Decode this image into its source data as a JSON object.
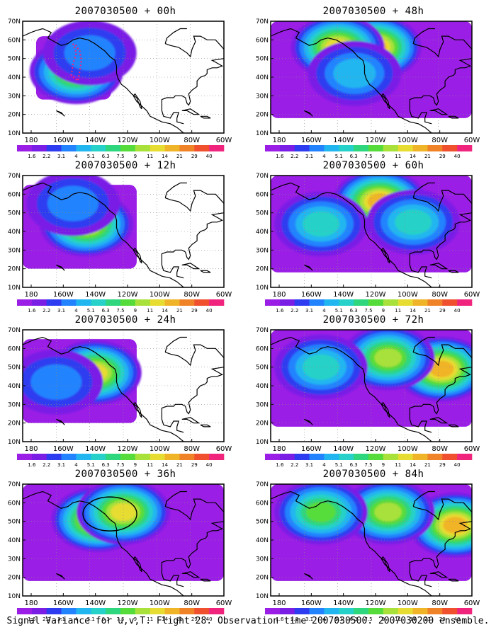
{
  "caption": "Signal Variance for u,v,T. Flight 28. Observation time 2007030500. 2007030200 ensemble.",
  "colorbar": {
    "labels": [
      "1.6",
      "2.2",
      "3.1",
      "4",
      "5.1",
      "6.3",
      "7.5",
      "9",
      "11",
      "14",
      "21",
      "29",
      "40"
    ],
    "colors": [
      "#9b1ee6",
      "#7a1ee6",
      "#2d3cf0",
      "#2383ff",
      "#21b6f0",
      "#25d1c8",
      "#2ed67e",
      "#56dc3a",
      "#a8e13a",
      "#e6dc32",
      "#f0b428",
      "#f08228",
      "#f0502d",
      "#f0237d"
    ]
  },
  "axes": {
    "xticks": [
      "180",
      "160W",
      "140W",
      "120W",
      "100W",
      "80W",
      "60W"
    ],
    "yticks": [
      "10N",
      "20N",
      "30N",
      "40N",
      "50N",
      "60N",
      "70N"
    ]
  },
  "chart_data": [
    {
      "type": "heatmap",
      "title": "2007030500 + 00h",
      "field": "signal variance",
      "xlim": [
        "180",
        "60W"
      ],
      "ylim": [
        "10N",
        "70N"
      ],
      "blobs": [
        {
          "lon": -148,
          "lat": 43,
          "peak": 11
        },
        {
          "lon": -140,
          "lat": 53,
          "peak": 4
        }
      ],
      "extent": "small",
      "path": true
    },
    {
      "type": "heatmap",
      "title": "2007030500 + 12h",
      "field": "signal variance",
      "xlim": [
        "180",
        "60W"
      ],
      "ylim": [
        "10N",
        "70N"
      ],
      "blobs": [
        {
          "lon": -142,
          "lat": 44,
          "peak": 14
        },
        {
          "lon": -150,
          "lat": 55,
          "peak": 5
        }
      ],
      "extent": "medium"
    },
    {
      "type": "heatmap",
      "title": "2007030500 + 24h",
      "field": "signal variance",
      "xlim": [
        "180",
        "60W"
      ],
      "ylim": [
        "10N",
        "70N"
      ],
      "blobs": [
        {
          "lon": -137,
          "lat": 47,
          "peak": 14
        },
        {
          "lon": -160,
          "lat": 42,
          "peak": 5
        }
      ],
      "extent": "medium"
    },
    {
      "type": "heatmap",
      "title": "2007030500 + 36h",
      "field": "signal variance",
      "xlim": [
        "180",
        "60W"
      ],
      "ylim": [
        "10N",
        "70N"
      ],
      "blobs": [
        {
          "lon": -135,
          "lat": 51,
          "peak": 21
        },
        {
          "lon": -120,
          "lat": 55,
          "peak": 14
        }
      ],
      "extent": "large",
      "ellipse": true
    },
    {
      "type": "heatmap",
      "title": "2007030500 + 48h",
      "field": "signal variance",
      "xlim": [
        "180",
        "60W"
      ],
      "ylim": [
        "10N",
        "70N"
      ],
      "blobs": [
        {
          "lon": -118,
          "lat": 56,
          "peak": 21
        },
        {
          "lon": -140,
          "lat": 56,
          "peak": 14
        },
        {
          "lon": -130,
          "lat": 42,
          "peak": 6
        }
      ],
      "extent": "large"
    },
    {
      "type": "heatmap",
      "title": "2007030500 + 60h",
      "field": "signal variance",
      "xlim": [
        "180",
        "60W"
      ],
      "ylim": [
        "10N",
        "70N"
      ],
      "blobs": [
        {
          "lon": -115,
          "lat": 56,
          "peak": 21
        },
        {
          "lon": -150,
          "lat": 44,
          "peak": 7
        },
        {
          "lon": -95,
          "lat": 45,
          "peak": 7
        }
      ],
      "extent": "large"
    },
    {
      "type": "heatmap",
      "title": "2007030500 + 72h",
      "field": "signal variance",
      "xlim": [
        "180",
        "60W"
      ],
      "ylim": [
        "10N",
        "70N"
      ],
      "blobs": [
        {
          "lon": -78,
          "lat": 49,
          "peak": 21
        },
        {
          "lon": -110,
          "lat": 55,
          "peak": 11
        },
        {
          "lon": -150,
          "lat": 50,
          "peak": 7
        }
      ],
      "extent": "large"
    },
    {
      "type": "heatmap",
      "title": "2007030500 + 84h",
      "field": "signal variance",
      "xlim": [
        "180",
        "60W"
      ],
      "ylim": [
        "10N",
        "70N"
      ],
      "blobs": [
        {
          "lon": -70,
          "lat": 48,
          "peak": 21
        },
        {
          "lon": -110,
          "lat": 55,
          "peak": 11
        },
        {
          "lon": -150,
          "lat": 55,
          "peak": 9
        }
      ],
      "extent": "large"
    }
  ]
}
